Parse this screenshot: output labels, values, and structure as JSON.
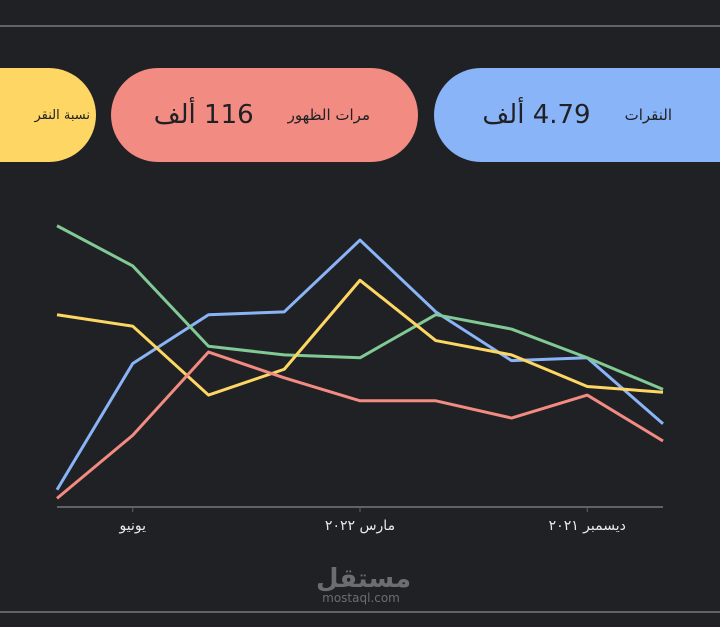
{
  "cards": [
    {
      "label": "النقرات",
      "value": "4.79 ألف",
      "color": "#8ab4f8"
    },
    {
      "label": "مرات الظهور",
      "value": "116 ألف",
      "color": "#f28b82"
    },
    {
      "label": "نسبة النقر",
      "value": "",
      "color": "#fdd663"
    }
  ],
  "watermark": {
    "arabic": "مستقل",
    "latin": "mostaql.com"
  },
  "chart_data": {
    "type": "line",
    "direction": "rtl",
    "x": [
      0,
      1,
      2,
      3,
      4,
      5,
      6,
      7,
      8
    ],
    "x_ticks": [
      {
        "x": 1,
        "label": "ديسمبر ٢٠٢١"
      },
      {
        "x": 4,
        "label": "مارس ٢٠٢٢"
      },
      {
        "x": 7,
        "label": "يونيو"
      }
    ],
    "ylim": [
      0,
      100
    ],
    "grid": false,
    "series": [
      {
        "color": "#8ab4f8",
        "values": [
          29,
          52,
          51,
          68,
          93,
          68,
          67,
          50,
          6
        ]
      },
      {
        "color": "#81c995",
        "values": [
          41,
          52,
          62,
          67,
          52,
          53,
          56,
          84,
          98
        ]
      },
      {
        "color": "#fdd663",
        "values": [
          40,
          42,
          53,
          58,
          79,
          48,
          39,
          63,
          67
        ]
      },
      {
        "color": "#f28b82",
        "values": [
          23,
          39,
          31,
          37,
          37,
          45,
          54,
          25,
          3
        ]
      }
    ]
  }
}
